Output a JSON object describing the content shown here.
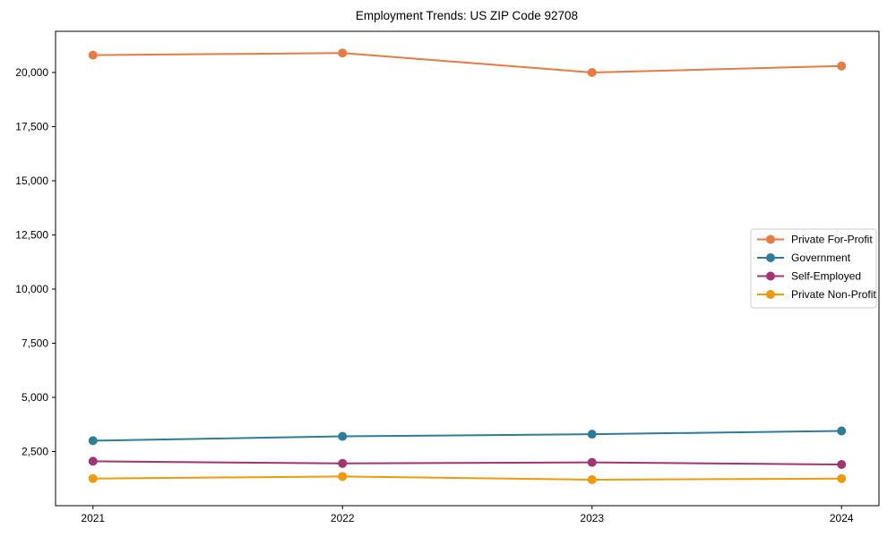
{
  "figure": {
    "background": "#ffffff",
    "border_color": "#000000"
  },
  "chart_data": {
    "type": "line",
    "title": "Employment Trends: US ZIP Code 92708",
    "xlabel": "",
    "ylabel": "",
    "categories": [
      "2021",
      "2022",
      "2023",
      "2024"
    ],
    "x_values": [
      2021,
      2022,
      2023,
      2024
    ],
    "series": [
      {
        "name": "Private For-Profit",
        "color": "#E87A42",
        "marker": "circle",
        "values": [
          20800,
          20900,
          20000,
          20300
        ]
      },
      {
        "name": "Government",
        "color": "#2B7D98",
        "marker": "circle",
        "values": [
          3000,
          3200,
          3300,
          3450
        ]
      },
      {
        "name": "Self-Employed",
        "color": "#A23473",
        "marker": "circle",
        "values": [
          2050,
          1950,
          2000,
          1900
        ]
      },
      {
        "name": "Private Non-Profit",
        "color": "#F0990A",
        "marker": "circle",
        "values": [
          1250,
          1350,
          1200,
          1250
        ]
      }
    ],
    "xlim": [
      2020.85,
      2024.15
    ],
    "ylim": [
      0,
      21900
    ],
    "yticks": [
      2500,
      5000,
      7500,
      10000,
      12500,
      15000,
      17500,
      20000
    ],
    "ytick_labels": [
      "2,500",
      "5,000",
      "7,500",
      "10,000",
      "12,500",
      "15,000",
      "17,500",
      "20,000"
    ],
    "grid": false,
    "legend": {
      "position": "right-middle",
      "border_color": "#cccccc",
      "background": "#ffffff",
      "entries": [
        "Private For-Profit",
        "Government",
        "Self-Employed",
        "Private Non-Profit"
      ]
    },
    "axis_color": "#000000",
    "text_color": "#000000"
  }
}
